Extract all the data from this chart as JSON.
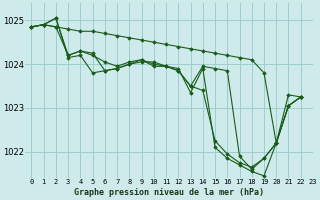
{
  "title": "Graphe pression niveau de la mer (hPa)",
  "background_color": "#ceeaea",
  "grid_color": "#9ecece",
  "line_color": "#1a5c1a",
  "xlim": [
    -0.5,
    23
  ],
  "ylim": [
    1021.4,
    1025.4
  ],
  "yticks": [
    1022,
    1023,
    1024,
    1025
  ],
  "xtick_labels": [
    "0",
    "1",
    "2",
    "3",
    "4",
    "5",
    "6",
    "7",
    "8",
    "9",
    "10",
    "11",
    "12",
    "13",
    "14",
    "15",
    "16",
    "17",
    "18",
    "19",
    "20",
    "21",
    "22",
    "23"
  ],
  "series": [
    {
      "x": [
        0,
        1,
        2,
        3,
        4,
        5,
        6,
        7,
        8,
        9,
        10,
        11,
        12,
        13,
        14,
        15,
        16,
        17,
        18,
        19,
        20,
        21,
        22
      ],
      "y": [
        1024.85,
        1024.9,
        1024.85,
        1024.8,
        1024.75,
        1024.75,
        1024.7,
        1024.65,
        1024.6,
        1024.55,
        1024.5,
        1024.45,
        1024.4,
        1024.35,
        1024.3,
        1024.25,
        1024.2,
        1024.15,
        1024.1,
        1023.8,
        1022.2,
        1023.3,
        1023.25
      ]
    },
    {
      "x": [
        0,
        1,
        2,
        3,
        4,
        5,
        6,
        7,
        8,
        9,
        10,
        11,
        12,
        13,
        14,
        15,
        16,
        17,
        18,
        19,
        20,
        21,
        22
      ],
      "y": [
        1024.85,
        1024.9,
        1025.05,
        1024.15,
        1024.2,
        1023.8,
        1023.85,
        1023.9,
        1024.0,
        1024.05,
        1024.05,
        1023.95,
        1023.9,
        1023.35,
        1023.9,
        1022.1,
        1021.85,
        1021.7,
        1021.55,
        1021.45,
        1022.2,
        1023.05,
        1023.25
      ]
    },
    {
      "x": [
        0,
        1,
        2,
        3,
        4,
        5,
        6,
        7,
        8,
        9,
        10,
        11,
        12,
        13,
        14,
        15,
        16,
        17,
        18,
        19,
        20,
        21,
        22
      ],
      "y": [
        1024.85,
        1024.9,
        1025.05,
        1024.2,
        1024.3,
        1024.25,
        1023.85,
        1023.9,
        1024.0,
        1024.1,
        1024.0,
        1023.95,
        1023.85,
        1023.5,
        1023.4,
        1022.25,
        1021.95,
        1021.75,
        1021.65,
        1021.85,
        1022.2,
        1023.05,
        1023.25
      ]
    },
    {
      "x": [
        0,
        1,
        2,
        3,
        4,
        5,
        6,
        7,
        8,
        9,
        10,
        11,
        12,
        13,
        14,
        15,
        16,
        17,
        18,
        19,
        20,
        21,
        22
      ],
      "y": [
        1024.85,
        1024.9,
        1024.85,
        1024.2,
        1024.3,
        1024.2,
        1024.05,
        1023.95,
        1024.05,
        1024.1,
        1023.95,
        1023.95,
        1023.85,
        1023.5,
        1023.95,
        1023.9,
        1023.85,
        1021.9,
        1021.6,
        1021.85,
        1022.2,
        1023.05,
        1023.25
      ]
    }
  ]
}
